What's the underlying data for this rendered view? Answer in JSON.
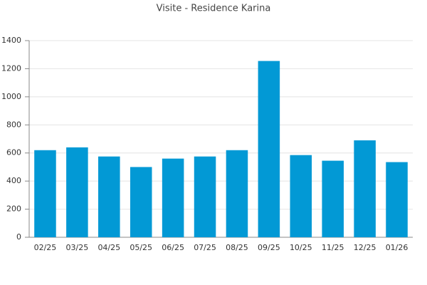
{
  "chart_data": {
    "type": "bar",
    "title": "Visite - Residence Karina",
    "categories": [
      "02/25",
      "03/25",
      "04/25",
      "05/25",
      "06/25",
      "07/25",
      "08/25",
      "09/25",
      "10/25",
      "11/25",
      "12/25",
      "01/26"
    ],
    "values": [
      620,
      640,
      575,
      500,
      560,
      575,
      620,
      1255,
      585,
      545,
      690,
      535
    ],
    "color": "#0299d5",
    "ylim": [
      0,
      1400
    ],
    "yticks": [
      0,
      200,
      400,
      600,
      800,
      1000,
      1200,
      1400
    ],
    "grid": true
  }
}
